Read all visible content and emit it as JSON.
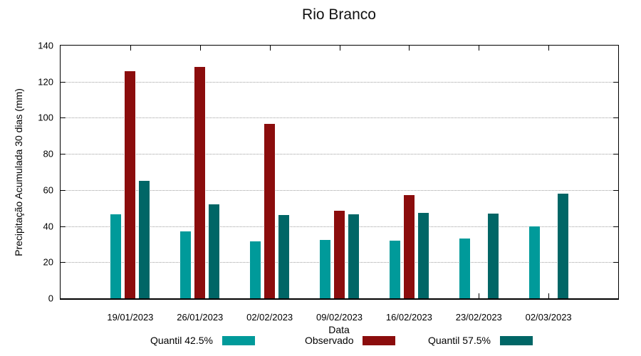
{
  "chart_data": {
    "type": "bar",
    "title": "Rio Branco",
    "xlabel": "Data",
    "ylabel": "Precipitação Acumulada 30 dias (mm)",
    "ylim": [
      0,
      140
    ],
    "ytick_step": 20,
    "grid": true,
    "legend_position": "bottom",
    "categories": [
      "19/01/2023",
      "26/01/2023",
      "02/02/2023",
      "09/02/2023",
      "16/02/2023",
      "23/02/2023",
      "02/03/2023"
    ],
    "series": [
      {
        "key": "quantil-42-5",
        "name": "Quantil 42.5%",
        "color": "#009A9A",
        "values": [
          46.5,
          37,
          31.5,
          32.5,
          32,
          33,
          40
        ]
      },
      {
        "key": "observado",
        "name": "Observado",
        "color": "#8B0D0D",
        "values": [
          126,
          128,
          96.5,
          48.5,
          57,
          null,
          null
        ]
      },
      {
        "key": "quantil-57-5",
        "name": "Quantil 57.5%",
        "color": "#006666",
        "values": [
          65,
          52,
          46,
          46.5,
          47.5,
          47,
          58
        ]
      }
    ]
  },
  "colors": {
    "grid": "#9e9e9e",
    "axis": "#000000",
    "background": "#ffffff"
  }
}
